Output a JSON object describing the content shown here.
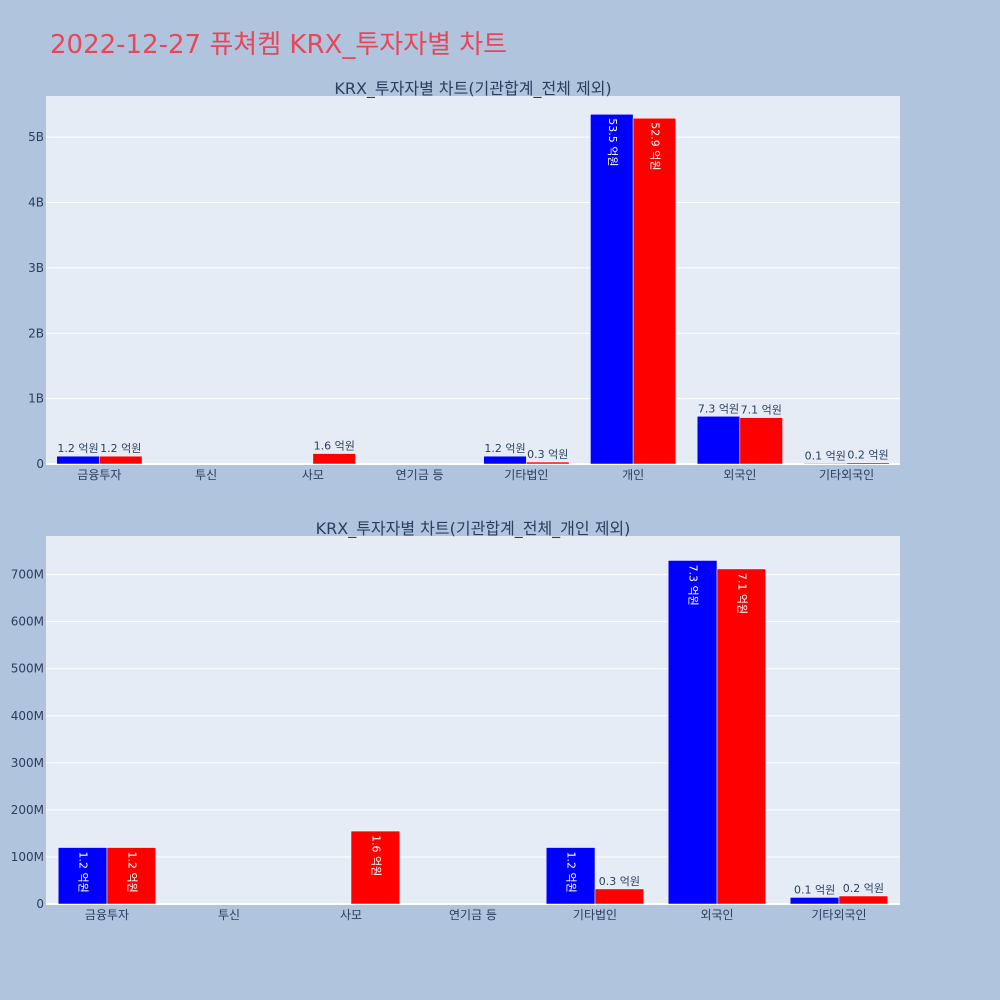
{
  "page": {
    "title": "2022-12-27 퓨쳐켐 KRX_투자자별 차트"
  },
  "colors": {
    "background": "#b0c4de",
    "plot_bg": "#e5ecf6",
    "title": "#e8475a",
    "series_a": "#0000ff",
    "series_b": "#ff0000"
  },
  "chart_data": [
    {
      "type": "bar",
      "title": "KRX_투자자별 차트(기관합계_전체 제외)",
      "categories": [
        "금융투자",
        "투신",
        "사모",
        "연기금 등",
        "기타법인",
        "개인",
        "외국인",
        "기타외국인"
      ],
      "series": [
        {
          "color": "#0000ff",
          "values": [
            120000000,
            0,
            0,
            0,
            120000000,
            5350000000,
            730000000,
            10000000
          ],
          "labels": [
            "1.2 억원",
            "",
            "",
            "",
            "1.2 억원",
            "53.5 억원",
            "7.3 억원",
            "0.1 억원"
          ]
        },
        {
          "color": "#ff0000",
          "values": [
            120000000,
            0,
            160000000,
            0,
            30000000,
            5290000000,
            710000000,
            20000000
          ],
          "labels": [
            "1.2 억원",
            "",
            "1.6 억원",
            "",
            "0.3 억원",
            "52.9 억원",
            "7.1 억원",
            "0.2 억원"
          ]
        }
      ],
      "yticks": [
        0,
        1000000000,
        2000000000,
        3000000000,
        4000000000,
        5000000000
      ],
      "ytick_labels": [
        "0",
        "1B",
        "2B",
        "3B",
        "4B",
        "5B"
      ],
      "ylim": [
        0,
        5630000000
      ]
    },
    {
      "type": "bar",
      "title": "KRX_투자자별 차트(기관합계_전체_개인 제외)",
      "categories": [
        "금융투자",
        "투신",
        "사모",
        "연기금 등",
        "기타법인",
        "외국인",
        "기타외국인"
      ],
      "series": [
        {
          "color": "#0000ff",
          "values": [
            120000000,
            0,
            0,
            0,
            120000000,
            730000000,
            14000000
          ],
          "labels": [
            "1.2 억원",
            "",
            "",
            "",
            "1.2 억원",
            "7.3 억원",
            "0.1 억원"
          ]
        },
        {
          "color": "#ff0000",
          "values": [
            120000000,
            0,
            155000000,
            0,
            32000000,
            712000000,
            17000000
          ],
          "labels": [
            "1.2 억원",
            "",
            "1.6 억원",
            "",
            "0.3 억원",
            "7.1 억원",
            "0.2 억원"
          ]
        }
      ],
      "yticks": [
        0,
        100000000,
        200000000,
        300000000,
        400000000,
        500000000,
        600000000,
        700000000
      ],
      "ytick_labels": [
        "0",
        "100M",
        "200M",
        "300M",
        "400M",
        "500M",
        "600M",
        "700M"
      ],
      "ylim": [
        0,
        782000000
      ]
    }
  ]
}
